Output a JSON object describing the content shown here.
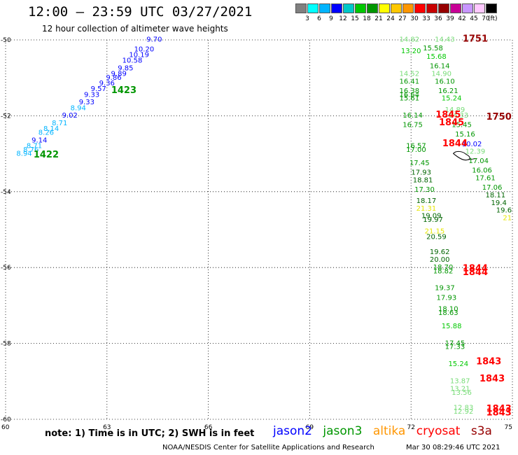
{
  "header": {
    "title": "12:00 – 23:59 UTC 03/27/2021",
    "subtitle": "12 hour collection of altimeter wave heights"
  },
  "legend": {
    "unit": "(ft)",
    "colors": [
      "#808080",
      "#00ffff",
      "#00b4ff",
      "#0000ff",
      "#00c8c8",
      "#00c800",
      "#009600",
      "#ffff00",
      "#ffc800",
      "#ff9600",
      "#ff0000",
      "#c80000",
      "#960000",
      "#c80096",
      "#c896ff",
      "#ffc8ff",
      "#000000"
    ],
    "labels": [
      "3",
      "6",
      "9",
      "12",
      "15",
      "18",
      "21",
      "24",
      "27",
      "30",
      "33",
      "36",
      "39",
      "42",
      "45",
      "70"
    ]
  },
  "chart_data": {
    "type": "scatter",
    "x_axis": {
      "range": [
        60,
        75
      ],
      "ticks": [
        "60",
        "63",
        "66",
        "69",
        "72",
        "75"
      ]
    },
    "y_axis": {
      "range": [
        -60,
        -50
      ],
      "ticks": [
        "-50",
        "-52",
        "-54",
        "-56",
        "-58",
        "-60"
      ]
    },
    "grid": true,
    "track_labels": [
      {
        "text": "1422",
        "lon": 61.2,
        "lat": -53.1,
        "color": "#009600"
      },
      {
        "text": "1423",
        "lon": 63.5,
        "lat": -51.4,
        "color": "#009600"
      },
      {
        "text": "1751",
        "lon": 73.9,
        "lat": -50.05,
        "color": "#960000"
      },
      {
        "text": "1750",
        "lon": 74.6,
        "lat": -52.1,
        "color": "#960000"
      },
      {
        "text": "1845",
        "lon": 73.1,
        "lat": -52.05,
        "color": "#ff0000"
      },
      {
        "text": "1845",
        "lon": 73.2,
        "lat": -52.25,
        "color": "#ff0000"
      },
      {
        "text": "1844",
        "lon": 73.3,
        "lat": -52.8,
        "color": "#ff0000"
      },
      {
        "text": "1844",
        "lon": 73.9,
        "lat": -56.1,
        "color": "#ff0000"
      },
      {
        "text": "1844",
        "lon": 73.9,
        "lat": -56.2,
        "color": "#ff0000"
      },
      {
        "text": "1843",
        "lon": 74.3,
        "lat": -58.55,
        "color": "#ff0000"
      },
      {
        "text": "1843",
        "lon": 74.4,
        "lat": -59.0,
        "color": "#ff0000"
      },
      {
        "text": "1843",
        "lon": 74.6,
        "lat": -59.8,
        "color": "#ff0000"
      },
      {
        "text": "1843",
        "lon": 74.6,
        "lat": -59.9,
        "color": "#ff0000"
      }
    ],
    "points": [
      {
        "text": "8.94",
        "lon": 60.55,
        "lat": -53.05,
        "color": "#00b4ff"
      },
      {
        "text": "8.76",
        "lon": 60.75,
        "lat": -52.95,
        "color": "#00b4ff"
      },
      {
        "text": "8.71",
        "lon": 60.85,
        "lat": -52.85,
        "color": "#00b4ff"
      },
      {
        "text": "9.14",
        "lon": 61.0,
        "lat": -52.7,
        "color": "#0000ff"
      },
      {
        "text": "8.26",
        "lon": 61.2,
        "lat": -52.5,
        "color": "#00b4ff"
      },
      {
        "text": "8.14",
        "lon": 61.35,
        "lat": -52.4,
        "color": "#00b4ff"
      },
      {
        "text": "8.71",
        "lon": 61.6,
        "lat": -52.25,
        "color": "#00b4ff"
      },
      {
        "text": "9.02",
        "lon": 61.9,
        "lat": -52.05,
        "color": "#0000ff"
      },
      {
        "text": "8.94",
        "lon": 62.15,
        "lat": -51.85,
        "color": "#00b4ff"
      },
      {
        "text": "9.33",
        "lon": 62.4,
        "lat": -51.7,
        "color": "#0000ff"
      },
      {
        "text": "9.33",
        "lon": 62.55,
        "lat": -51.5,
        "color": "#0000ff"
      },
      {
        "text": "9.57",
        "lon": 62.75,
        "lat": -51.35,
        "color": "#0000ff"
      },
      {
        "text": "9.36",
        "lon": 63.0,
        "lat": -51.2,
        "color": "#0000ff"
      },
      {
        "text": "9.86",
        "lon": 63.2,
        "lat": -51.05,
        "color": "#0000ff"
      },
      {
        "text": "9.89",
        "lon": 63.35,
        "lat": -50.95,
        "color": "#0000ff"
      },
      {
        "text": "9.85",
        "lon": 63.55,
        "lat": -50.8,
        "color": "#0000ff"
      },
      {
        "text": "10.58",
        "lon": 63.75,
        "lat": -50.6,
        "color": "#0000ff"
      },
      {
        "text": "10.19",
        "lon": 63.95,
        "lat": -50.45,
        "color": "#0000ff"
      },
      {
        "text": "10.20",
        "lon": 64.1,
        "lat": -50.3,
        "color": "#0000ff"
      },
      {
        "text": "9.70",
        "lon": 64.4,
        "lat": -50.05,
        "color": "#0000ff"
      },
      {
        "text": "14.82",
        "lon": 71.95,
        "lat": -50.05,
        "color": "#78dc78"
      },
      {
        "text": "14.43",
        "lon": 73.0,
        "lat": -50.05,
        "color": "#78dc78"
      },
      {
        "text": "13.20",
        "lon": 72.0,
        "lat": -50.35,
        "color": "#00c800"
      },
      {
        "text": "15.58",
        "lon": 72.65,
        "lat": -50.28,
        "color": "#009600"
      },
      {
        "text": "15.68",
        "lon": 72.75,
        "lat": -50.5,
        "color": "#00c800"
      },
      {
        "text": "16.14",
        "lon": 72.85,
        "lat": -50.75,
        "color": "#009600"
      },
      {
        "text": "14.52",
        "lon": 71.95,
        "lat": -50.95,
        "color": "#78dc78"
      },
      {
        "text": "14.90",
        "lon": 72.9,
        "lat": -50.95,
        "color": "#78dc78"
      },
      {
        "text": "16.41",
        "lon": 71.95,
        "lat": -51.15,
        "color": "#009600"
      },
      {
        "text": "16.10",
        "lon": 73.0,
        "lat": -51.15,
        "color": "#009600"
      },
      {
        "text": "16.38",
        "lon": 71.95,
        "lat": -51.4,
        "color": "#009600"
      },
      {
        "text": "16.21",
        "lon": 73.1,
        "lat": -51.4,
        "color": "#009600"
      },
      {
        "text": "16.64",
        "lon": 71.95,
        "lat": -51.5,
        "color": "#009600"
      },
      {
        "text": "15.61",
        "lon": 71.95,
        "lat": -51.6,
        "color": "#009600"
      },
      {
        "text": "15.24",
        "lon": 73.2,
        "lat": -51.6,
        "color": "#00c800"
      },
      {
        "text": "14.89",
        "lon": 73.3,
        "lat": -51.9,
        "color": "#78dc78"
      },
      {
        "text": "16.14",
        "lon": 72.05,
        "lat": -52.05,
        "color": "#009600"
      },
      {
        "text": "14.33",
        "lon": 73.4,
        "lat": -52.05,
        "color": "#78dc78"
      },
      {
        "text": "16.75",
        "lon": 72.05,
        "lat": -52.3,
        "color": "#009600"
      },
      {
        "text": "15.45",
        "lon": 73.5,
        "lat": -52.3,
        "color": "#009600"
      },
      {
        "text": "15.16",
        "lon": 73.6,
        "lat": -52.55,
        "color": "#009600"
      },
      {
        "text": "16.57",
        "lon": 72.15,
        "lat": -52.85,
        "color": "#009600"
      },
      {
        "text": "17.00",
        "lon": 72.15,
        "lat": -52.95,
        "color": "#009600"
      },
      {
        "text": "10.02",
        "lon": 73.8,
        "lat": -52.8,
        "color": "#0000ff"
      },
      {
        "text": "12.39",
        "lon": 73.9,
        "lat": -53.0,
        "color": "#78dc78"
      },
      {
        "text": "17.04",
        "lon": 74.0,
        "lat": -53.25,
        "color": "#009600"
      },
      {
        "text": "17.45",
        "lon": 72.25,
        "lat": -53.3,
        "color": "#009600"
      },
      {
        "text": "16.06",
        "lon": 74.1,
        "lat": -53.5,
        "color": "#009600"
      },
      {
        "text": "17.93",
        "lon": 72.3,
        "lat": -53.55,
        "color": "#006400"
      },
      {
        "text": "17.61",
        "lon": 74.2,
        "lat": -53.7,
        "color": "#009600"
      },
      {
        "text": "18.81",
        "lon": 72.35,
        "lat": -53.75,
        "color": "#006400"
      },
      {
        "text": "17.06",
        "lon": 74.4,
        "lat": -53.95,
        "color": "#009600"
      },
      {
        "text": "17.30",
        "lon": 72.4,
        "lat": -54.0,
        "color": "#009600"
      },
      {
        "text": "18.11",
        "lon": 74.5,
        "lat": -54.15,
        "color": "#006400"
      },
      {
        "text": "18.17",
        "lon": 72.45,
        "lat": -54.3,
        "color": "#006400"
      },
      {
        "text": "19.4",
        "lon": 74.6,
        "lat": -54.35,
        "color": "#006400"
      },
      {
        "text": "21.31",
        "lon": 72.45,
        "lat": -54.5,
        "color": "#e6e600"
      },
      {
        "text": "19.6",
        "lon": 74.75,
        "lat": -54.55,
        "color": "#006400"
      },
      {
        "text": "21",
        "lon": 74.85,
        "lat": -54.75,
        "color": "#e6e600"
      },
      {
        "text": "19.09",
        "lon": 72.6,
        "lat": -54.7,
        "color": "#006400"
      },
      {
        "text": "19.97",
        "lon": 72.65,
        "lat": -54.8,
        "color": "#006400"
      },
      {
        "text": "21.15",
        "lon": 72.7,
        "lat": -55.1,
        "color": "#e6e600"
      },
      {
        "text": "20.59",
        "lon": 72.75,
        "lat": -55.25,
        "color": "#006400"
      },
      {
        "text": "19.62",
        "lon": 72.85,
        "lat": -55.65,
        "color": "#006400"
      },
      {
        "text": "20.00",
        "lon": 72.85,
        "lat": -55.85,
        "color": "#006400"
      },
      {
        "text": "18.70",
        "lon": 72.95,
        "lat": -56.05,
        "color": "#009600"
      },
      {
        "text": "18.82",
        "lon": 72.95,
        "lat": -56.15,
        "color": "#009600"
      },
      {
        "text": "19.37",
        "lon": 73.0,
        "lat": -56.6,
        "color": "#009600"
      },
      {
        "text": "17.93",
        "lon": 73.05,
        "lat": -56.85,
        "color": "#009600"
      },
      {
        "text": "18.10",
        "lon": 73.1,
        "lat": -57.15,
        "color": "#009600"
      },
      {
        "text": "18.63",
        "lon": 73.1,
        "lat": -57.25,
        "color": "#009600"
      },
      {
        "text": "15.88",
        "lon": 73.2,
        "lat": -57.6,
        "color": "#00c800"
      },
      {
        "text": "17.45",
        "lon": 73.3,
        "lat": -58.05,
        "color": "#009600"
      },
      {
        "text": "17.33",
        "lon": 73.3,
        "lat": -58.15,
        "color": "#009600"
      },
      {
        "text": "15.24",
        "lon": 73.4,
        "lat": -58.6,
        "color": "#00c800"
      },
      {
        "text": "13.87",
        "lon": 73.45,
        "lat": -59.05,
        "color": "#78dc78"
      },
      {
        "text": "13.21",
        "lon": 73.45,
        "lat": -59.25,
        "color": "#78dc78"
      },
      {
        "text": "13.56",
        "lon": 73.5,
        "lat": -59.35,
        "color": "#78dc78"
      },
      {
        "text": "12.83",
        "lon": 73.55,
        "lat": -59.75,
        "color": "#78dc78"
      },
      {
        "text": "12.92",
        "lon": 73.55,
        "lat": -59.85,
        "color": "#78dc78"
      }
    ],
    "features": [
      {
        "type": "island",
        "lon": 73.5,
        "lat": -53.05
      }
    ]
  },
  "footer": {
    "note": "note: 1) Time is in UTC; 2) SWH is in feet",
    "satellites": [
      {
        "name": "jason2",
        "color": "#0000ff"
      },
      {
        "name": "jason3",
        "color": "#009600"
      },
      {
        "name": "altika",
        "color": "#ff9600"
      },
      {
        "name": "cryosat",
        "color": "#ff0000"
      },
      {
        "name": "s3a",
        "color": "#960000"
      }
    ],
    "credit": "NOAA/NESDIS Center for Satellite Applications and Research",
    "timestamp": "Mar 30 08:29:46 UTC 2021"
  }
}
